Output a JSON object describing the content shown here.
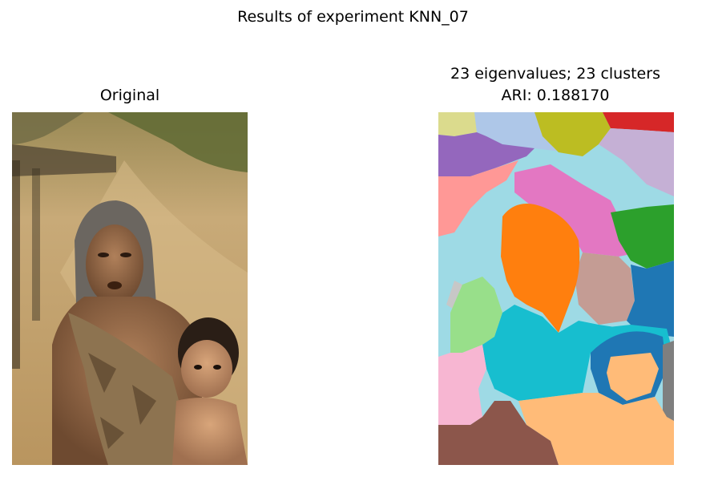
{
  "figure": {
    "title": "Results of experiment KNN_07"
  },
  "left_panel": {
    "title": "Original"
  },
  "right_panel": {
    "title_line1": "23 eigenvalues; 23 clusters",
    "title_line2": "ARI: 0.188170"
  },
  "colors": {
    "brown": "#8c564b",
    "blue": "#1f77b4",
    "orange": "#ff7f0e",
    "green": "#2ca02c",
    "red": "#d62728",
    "purple": "#9467bd",
    "pink": "#e377c2",
    "gray": "#7f7f7f",
    "olive": "#bcbd22",
    "cyan": "#17becf",
    "light_blue": "#aec7e8",
    "light_orange": "#ffbb78",
    "light_green": "#98df8a",
    "light_red": "#ff9896",
    "light_purple": "#c5b0d5",
    "light_brown": "#c49c94",
    "light_pink": "#f7b6d2",
    "light_gray": "#c7c7c7",
    "light_olive": "#dbdb8d",
    "light_cyan": "#9edae5"
  }
}
